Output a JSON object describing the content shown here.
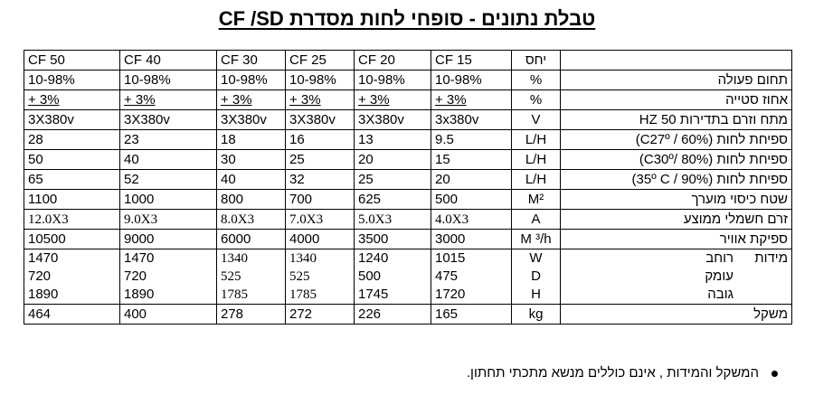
{
  "title": "טבלת נתונים  -  סופחי לחות מסדרת CF /SD",
  "table": {
    "header": {
      "label": "",
      "unit": "יחס",
      "models": [
        "CF 15",
        "CF 20",
        "CF 25",
        "CF 30",
        "CF 40",
        "CF 50"
      ]
    },
    "rows": [
      {
        "label": "תחום פעולה",
        "unit": "%",
        "values": [
          "10-98%",
          "10-98%",
          "10-98%",
          "10-98%",
          "10-98%",
          "10-98%"
        ]
      },
      {
        "label": "אחוז סטייה",
        "unit": "%",
        "values": [
          "+ 3%",
          "+ 3%",
          "+ 3%",
          "+ 3%",
          "+ 3%",
          "+ 3%"
        ]
      },
      {
        "label": "מתח וזרם בתדירות 50 HZ",
        "unit": "V",
        "values": [
          "3x380v",
          "3X380v",
          "3X380v",
          "3X380v",
          "3X380v",
          "3X380v"
        ]
      },
      {
        "label": "ספיחת לחות (C27º / 60%)",
        "unit": "L/H",
        "values": [
          "9.5",
          "13",
          "16",
          "18",
          "23",
          "28"
        ]
      },
      {
        "label": "ספיחת לחות (C30º/ 80%)",
        "unit": "L/H",
        "values": [
          "15",
          "20",
          "25",
          "30",
          "40",
          "50"
        ]
      },
      {
        "label": "ספיחת לחות (35º C / 90%)",
        "unit": "L/H",
        "values": [
          "20",
          "25",
          "32",
          "40",
          "52",
          "65"
        ]
      },
      {
        "label": "שטח כיסוי מוערך",
        "unit": "M²",
        "values": [
          "500",
          "625",
          "700",
          "800",
          "1000",
          "1100"
        ]
      },
      {
        "label": "זרם חשמלי ממוצע",
        "unit": "A",
        "values": [
          "4.0X3",
          "5.0X3",
          "7.0X3",
          "8.0X3",
          "9.0X3",
          "12.0X3"
        ]
      },
      {
        "label": "ספיקת אוויר",
        "unit": "M ³/h",
        "values": [
          "3000",
          "3500",
          "4000",
          "6000",
          "9000",
          "10500"
        ]
      }
    ],
    "dimensions": {
      "group_label": "מידות",
      "sub_labels": [
        "רוחב",
        "עומק",
        "גובה"
      ],
      "units": [
        "W",
        "D",
        "H"
      ],
      "values": [
        [
          "1015",
          "475",
          "1720"
        ],
        [
          "1240",
          "500",
          "1745"
        ],
        [
          "1340",
          "525",
          "1785"
        ],
        [
          "1340",
          "525",
          "1785"
        ],
        [
          "1470",
          "720",
          "1890"
        ],
        [
          "1470",
          "720",
          "1890"
        ]
      ]
    },
    "weight": {
      "label": "משקל",
      "unit": "kg",
      "values": [
        "165",
        "226",
        "272",
        "278",
        "400",
        "464"
      ]
    }
  },
  "note": "המשקל והמידות , אינם כוללים מנשא מתכתי תחתון."
}
